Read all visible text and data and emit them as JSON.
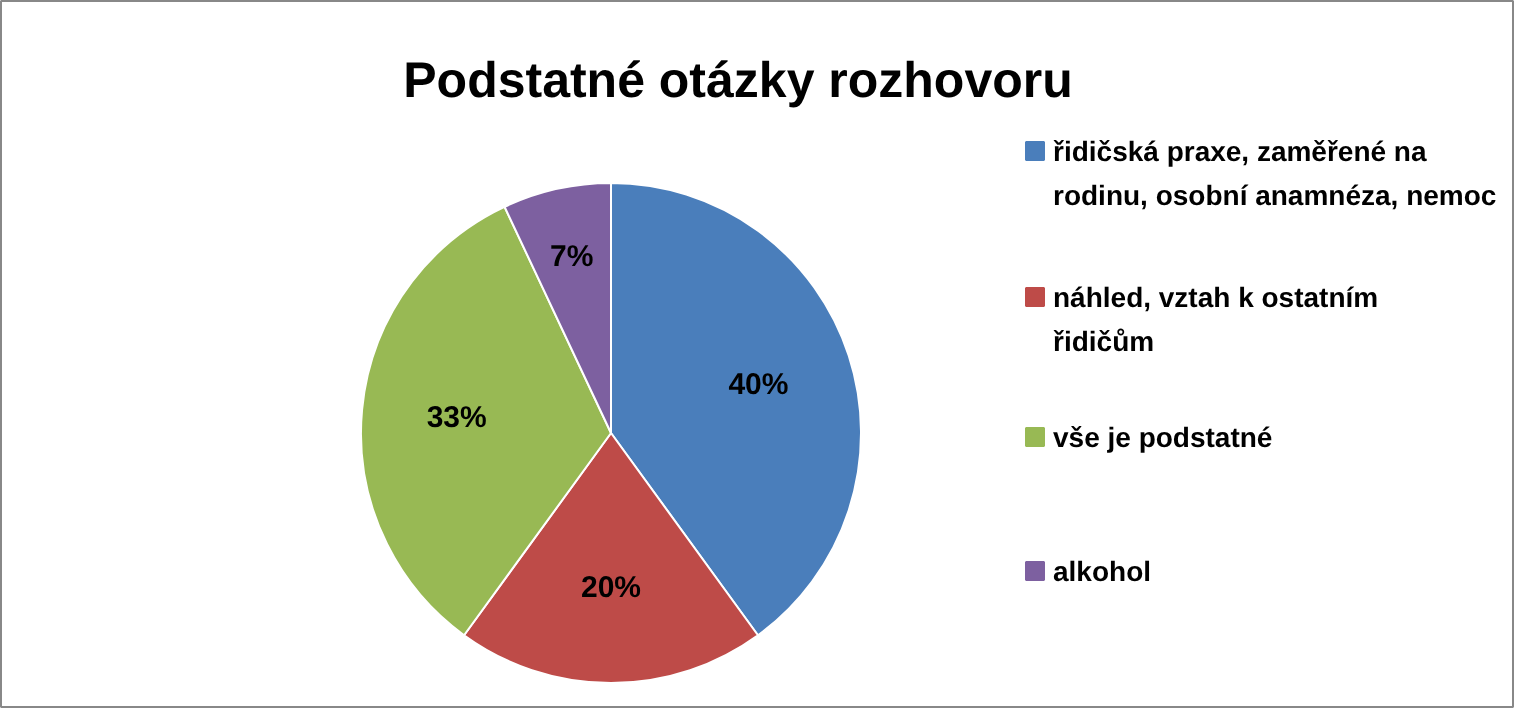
{
  "chart_data": {
    "type": "pie",
    "title": "Podstatné otázky rozhovoru",
    "categories": [
      "řidičská praxe, zaměřené na rodinu, osobní anamnéza, nemoc",
      "náhled, vztah k ostatním řidičům",
      "vše je podstatné",
      "alkohol"
    ],
    "values": [
      40,
      20,
      33,
      7
    ],
    "colors": [
      "#4a7ebb",
      "#be4b48",
      "#98b954",
      "#7d60a0"
    ],
    "value_labels": [
      "40%",
      "20%",
      "33%",
      "7%"
    ],
    "legend": "right"
  }
}
